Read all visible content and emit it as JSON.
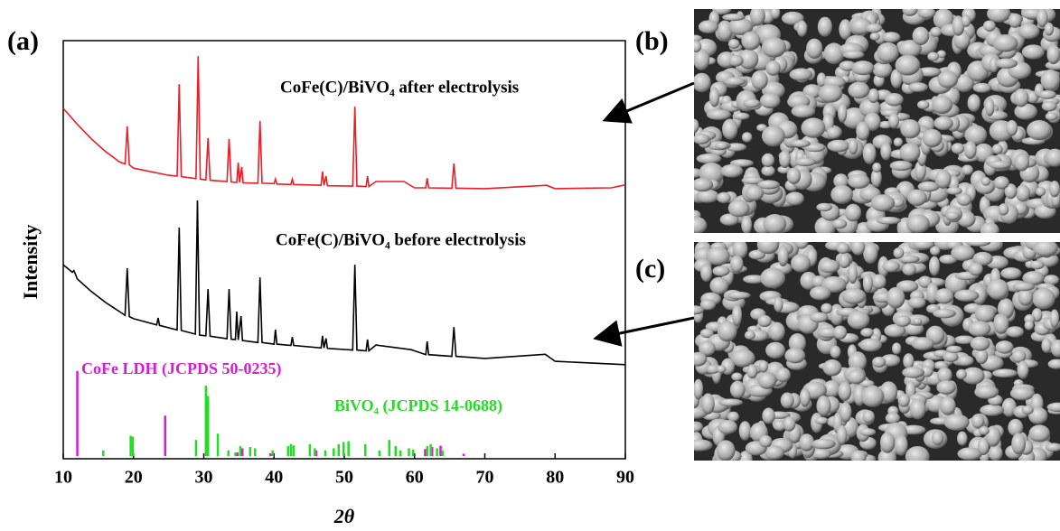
{
  "panel_labels": [
    "(a)",
    "(b)",
    "(c)"
  ],
  "chart_data": {
    "type": "line",
    "x_label": "2θ",
    "y_label": "Intensity",
    "xlim": [
      10,
      90
    ],
    "xticks": [
      10,
      20,
      30,
      40,
      50,
      60,
      70,
      80,
      90
    ],
    "ylim": [
      0,
      100
    ],
    "series": [
      {
        "name": "CoFe(C)/BiVO₄ after electrolysis",
        "color": "#ee1c25",
        "x": [
          10,
          12,
          14,
          16,
          18,
          18.8,
          19.1,
          19.4,
          20,
          25,
          26.2,
          26.5,
          26.8,
          28.9,
          29.2,
          29.5,
          30.3,
          30.6,
          30.9,
          33.3,
          33.6,
          33.9,
          34.7,
          34.9,
          35.1,
          35.4,
          35.6,
          37.7,
          38,
          38.3,
          40,
          40.2,
          40.4,
          42.4,
          42.6,
          42.8,
          46.7,
          46.9,
          47.1,
          47.4,
          47.6,
          51.2,
          51.5,
          51.8,
          53.1,
          53.3,
          53.5,
          54.5,
          58.5,
          60,
          61.6,
          61.8,
          62,
          65.3,
          65.6,
          65.9,
          70,
          78.8,
          80,
          88,
          90
        ],
        "values": [
          83.8,
          80,
          76.5,
          73.5,
          71,
          70.5,
          79.5,
          70.3,
          69.5,
          67.8,
          67.6,
          89.6,
          67.5,
          67,
          96.3,
          66.9,
          66.7,
          76.7,
          66.6,
          66.3,
          76.5,
          66.2,
          66.1,
          70.8,
          66.1,
          69.8,
          66,
          65.9,
          80.8,
          65.9,
          65.8,
          66.9,
          65.7,
          65.6,
          66.9,
          65.6,
          65.4,
          68.7,
          65.4,
          67.6,
          65.3,
          65.2,
          84.2,
          65.2,
          65.1,
          67.6,
          65.1,
          66.3,
          66.3,
          64.8,
          64.8,
          67.1,
          64.8,
          64.7,
          70.6,
          64.7,
          64.6,
          65.4,
          64.6,
          64.8,
          65.5
        ]
      },
      {
        "name": "CoFe(C)/BiVO₄ before electrolysis",
        "color": "#000000",
        "x": [
          10,
          11.3,
          11.5,
          11.7,
          12,
          14,
          16,
          18,
          18.8,
          19.1,
          19.4,
          20,
          23.3,
          23.5,
          23.7,
          26.2,
          26.5,
          26.8,
          28.8,
          29.1,
          29.4,
          30.3,
          30.6,
          30.9,
          33.3,
          33.6,
          33.9,
          34.5,
          34.7,
          34.9,
          35.3,
          35.5,
          37.7,
          38,
          38.3,
          40,
          40.2,
          40.4,
          42.4,
          42.6,
          42.8,
          46.7,
          46.9,
          47.1,
          47.4,
          47.6,
          51.2,
          51.5,
          51.8,
          53.1,
          53.3,
          53.5,
          54.5,
          59.5,
          61.6,
          61.8,
          62,
          65.3,
          65.6,
          65.9,
          70,
          78.6,
          80,
          90
        ],
        "values": [
          46.4,
          44.6,
          45,
          44.3,
          43,
          40,
          37.4,
          35.2,
          34.3,
          45.6,
          34,
          33.5,
          32,
          33.7,
          31.9,
          30.8,
          55.3,
          30.7,
          29.8,
          61.8,
          29.6,
          29.4,
          40.6,
          29.3,
          28.7,
          40.6,
          28.6,
          28.5,
          35.2,
          28.4,
          34.1,
          28.3,
          27.8,
          43.4,
          27.8,
          27.4,
          30.9,
          27.4,
          27.1,
          29.1,
          27.1,
          26.5,
          29.4,
          26.5,
          28.8,
          26.4,
          26,
          46.4,
          26,
          25.8,
          28.5,
          25.8,
          27.2,
          26.1,
          24.9,
          28.1,
          24.9,
          24.5,
          31.5,
          24.5,
          24,
          25,
          23.3,
          22.5
        ]
      }
    ],
    "reference_patterns": [
      {
        "name": "CoFe LDH (JCPDS 50-0235)",
        "color": "#d91ad9",
        "x": [
          12,
          24.5,
          34.8,
          35.5,
          39.5,
          46,
          61.5,
          62.5,
          63.7,
          67
        ],
        "values": [
          21,
          10.3,
          1.5,
          2.5,
          1.3,
          2,
          2.3,
          2.8,
          3.1,
          1.2
        ]
      },
      {
        "name": "BiVO₄ (JCPDS 14-0688)",
        "color": "#22dd22",
        "x": [
          15.7,
          19.6,
          19.9,
          28.9,
          30.3,
          30.6,
          32,
          33.5,
          34.5,
          35.2,
          36.6,
          37.3,
          39.8,
          42,
          42.4,
          42.8,
          45.1,
          45.8,
          47.3,
          48.5,
          49.2,
          49.9,
          50.6,
          53,
          55,
          56.4,
          57.3,
          58,
          59.2,
          59.8,
          61.8,
          62.3,
          63.2,
          64
        ],
        "values": [
          2,
          5.5,
          5.3,
          4.5,
          17.5,
          15,
          6,
          2,
          1.5,
          3,
          2.8,
          2.5,
          2,
          3,
          3.5,
          3.2,
          3.5,
          2.5,
          2,
          2.5,
          3.5,
          4,
          4.2,
          3.5,
          2,
          4.5,
          3,
          2,
          2.5,
          2.2,
          3,
          3.5,
          2.5,
          2
        ]
      }
    ]
  }
}
